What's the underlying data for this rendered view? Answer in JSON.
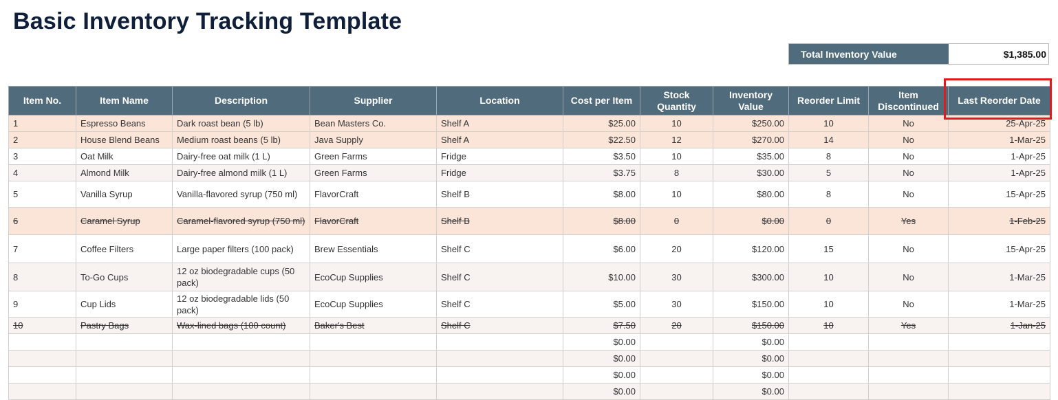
{
  "title": "Basic Inventory Tracking Template",
  "summary": {
    "label": "Total Inventory Value",
    "value": "$1,385.00"
  },
  "columns": [
    [
      "Item No."
    ],
    [
      "Item Name"
    ],
    [
      "Description"
    ],
    [
      "Supplier"
    ],
    [
      "Location"
    ],
    [
      "Cost per Item"
    ],
    [
      "Stock",
      "Quantity"
    ],
    [
      "Inventory",
      "Value"
    ],
    [
      "Reorder Limit"
    ],
    [
      "Item",
      "Discontinued"
    ],
    [
      "Last Reorder Date"
    ]
  ],
  "rows": [
    {
      "cells": [
        "1",
        "Espresso Beans",
        "Dark roast bean (5 lb)",
        "Bean Masters Co.",
        "Shelf A",
        "$25.00",
        "10",
        "$250.00",
        "10",
        "No",
        "25-Apr-25"
      ],
      "style": "peach",
      "strike": false
    },
    {
      "cells": [
        "2",
        "House Blend Beans",
        "Medium roast beans (5 lb)",
        "Java Supply",
        "Shelf A",
        "$22.50",
        "12",
        "$270.00",
        "14",
        "No",
        "1-Mar-25"
      ],
      "style": "peach",
      "strike": false
    },
    {
      "cells": [
        "3",
        "Oat Milk",
        "Dairy-free oat milk (1 L)",
        "Green Farms",
        "Fridge",
        "$3.50",
        "10",
        "$35.00",
        "8",
        "No",
        "1-Apr-25"
      ],
      "style": "white",
      "strike": false
    },
    {
      "cells": [
        "4",
        "Almond Milk",
        "Dairy-free almond milk (1 L)",
        "Green Farms",
        "Fridge",
        "$3.75",
        "8",
        "$30.00",
        "5",
        "No",
        "1-Apr-25"
      ],
      "style": "cream",
      "strike": false
    },
    {
      "cells": [
        "5",
        "Vanilla Syrup",
        "Vanilla-flavored syrup (750 ml)",
        "FlavorCraft",
        "Shelf B",
        "$8.00",
        "10",
        "$80.00",
        "8",
        "No",
        "15-Apr-25"
      ],
      "style": "white",
      "strike": false
    },
    {
      "cells": [
        "6",
        "Caramel Syrup",
        "Caramel-flavored syrup (750 ml)",
        "FlavorCraft",
        "Shelf B",
        "$8.00",
        "0",
        "$0.00",
        "0",
        "Yes",
        "1-Feb-25"
      ],
      "style": "peach",
      "strike": true
    },
    {
      "cells": [
        "7",
        "Coffee Filters",
        "Large paper filters (100 pack)",
        "Brew Essentials",
        "Shelf C",
        "$6.00",
        "20",
        "$120.00",
        "15",
        "No",
        "15-Apr-25"
      ],
      "style": "white",
      "strike": false
    },
    {
      "cells": [
        "8",
        "To-Go Cups",
        "12 oz biodegradable cups (50 pack)",
        "EcoCup Supplies",
        "Shelf C",
        "$10.00",
        "30",
        "$300.00",
        "10",
        "No",
        "1-Mar-25"
      ],
      "style": "cream",
      "strike": false
    },
    {
      "cells": [
        "9",
        "Cup Lids",
        "12 oz biodegradable lids (50 pack)",
        "EcoCup Supplies",
        "Shelf C",
        "$5.00",
        "30",
        "$150.00",
        "10",
        "No",
        "1-Mar-25"
      ],
      "style": "white",
      "strike": false
    },
    {
      "cells": [
        "10",
        "Pastry Bags",
        "Wax-lined bags (100 count)",
        "Baker's Best",
        "Shelf C",
        "$7.50",
        "20",
        "$150.00",
        "10",
        "Yes",
        "1-Jan-25"
      ],
      "style": "cream",
      "strike": true
    },
    {
      "cells": [
        "",
        "",
        "",
        "",
        "",
        "$0.00",
        "",
        "$0.00",
        "",
        "",
        ""
      ],
      "style": "white",
      "strike": false
    },
    {
      "cells": [
        "",
        "",
        "",
        "",
        "",
        "$0.00",
        "",
        "$0.00",
        "",
        "",
        ""
      ],
      "style": "cream",
      "strike": false
    },
    {
      "cells": [
        "",
        "",
        "",
        "",
        "",
        "$0.00",
        "",
        "$0.00",
        "",
        "",
        ""
      ],
      "style": "white",
      "strike": false
    },
    {
      "cells": [
        "",
        "",
        "",
        "",
        "",
        "$0.00",
        "",
        "$0.00",
        "",
        "",
        ""
      ],
      "style": "cream",
      "strike": false
    }
  ],
  "colors": {
    "header_bg": "#4f6b7c",
    "title": "#0f1f3a",
    "peach_row": "#fbe5d9",
    "cream_row": "#f8f2f0",
    "highlight": "#e11b1b"
  }
}
